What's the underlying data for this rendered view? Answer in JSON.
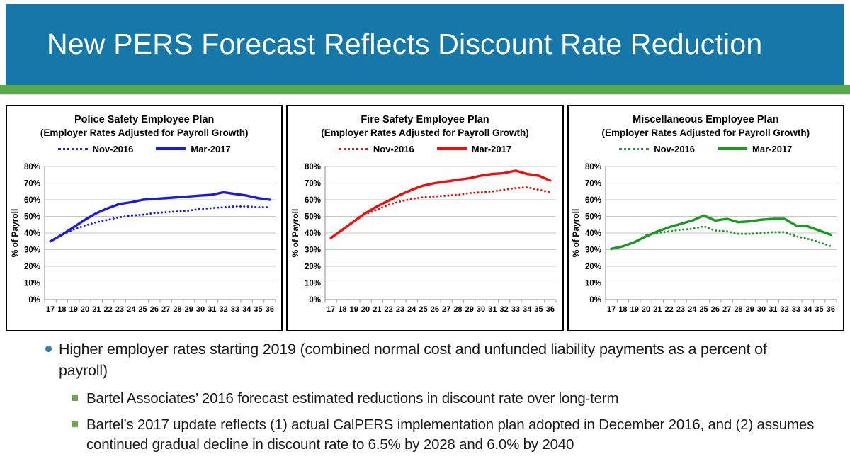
{
  "slide": {
    "title": "New PERS Forecast Reflects Discount Rate Reduction",
    "header_color": "#1578A8",
    "accent_color": "#57A94A"
  },
  "charts": [
    {
      "title": "Police Safety Employee Plan",
      "subtitle": "(Employer Rates Adjusted for Payroll Growth)",
      "chart_data": {
        "type": "line",
        "x": [
          17,
          18,
          19,
          20,
          21,
          22,
          23,
          24,
          25,
          26,
          27,
          28,
          29,
          30,
          31,
          32,
          33,
          34,
          35,
          36
        ],
        "ylabel": "% of Payroll",
        "ylim": [
          0,
          80
        ],
        "ytick_step": 10,
        "ytick_format": "percent",
        "grid": true,
        "legend_position": "top",
        "series": [
          {
            "name": "Nov-2016",
            "style": "dotted",
            "color": "#1A1AE6",
            "values": [
              35,
              39,
              42,
              44.5,
              46.5,
              48,
              49.5,
              50.5,
              51,
              52,
              52.5,
              53,
              53.5,
              54.5,
              55,
              55.5,
              56,
              56,
              55.5,
              55.5
            ]
          },
          {
            "name": "Mar-2017",
            "style": "solid",
            "color": "#1A1AE6",
            "values": [
              35,
              39,
              43.5,
              48,
              52,
              55,
              57.5,
              58.5,
              60,
              60.5,
              61,
              61.5,
              62,
              62.5,
              63,
              64.5,
              63.5,
              62.5,
              61,
              60
            ]
          }
        ]
      }
    },
    {
      "title": "Fire Safety Employee Plan",
      "subtitle": "(Employer Rates Adjusted for Payroll Growth)",
      "chart_data": {
        "type": "line",
        "x": [
          17,
          18,
          19,
          20,
          21,
          22,
          23,
          24,
          25,
          26,
          27,
          28,
          29,
          30,
          31,
          32,
          33,
          34,
          35,
          36
        ],
        "ylabel": "% of Payroll",
        "ylim": [
          0,
          80
        ],
        "ytick_step": 10,
        "ytick_format": "percent",
        "grid": true,
        "legend_position": "top",
        "series": [
          {
            "name": "Nov-2016",
            "style": "dotted",
            "color": "#F20D0D",
            "values": [
              37,
              42,
              47,
              51.5,
              54,
              57,
              59,
              60.5,
              61.5,
              62,
              62.5,
              63,
              64,
              64.5,
              65,
              66,
              67,
              67.5,
              66,
              64.5
            ]
          },
          {
            "name": "Mar-2017",
            "style": "solid",
            "color": "#F20D0D",
            "values": [
              37,
              42,
              47,
              52,
              56,
              59.5,
              63,
              66,
              68.5,
              70,
              71,
              72,
              73,
              74.5,
              75.5,
              76,
              77.5,
              75.5,
              74.5,
              71.5
            ]
          }
        ]
      }
    },
    {
      "title": "Miscellaneous Employee Plan",
      "subtitle": "(Employer Rates Adjusted for Payroll Growth)",
      "chart_data": {
        "type": "line",
        "x": [
          17,
          18,
          19,
          20,
          21,
          22,
          23,
          24,
          25,
          26,
          27,
          28,
          29,
          30,
          31,
          32,
          33,
          34,
          35,
          36
        ],
        "ylabel": "% of Payroll",
        "ylim": [
          0,
          80
        ],
        "ytick_step": 10,
        "ytick_format": "percent",
        "grid": true,
        "legend_position": "top",
        "series": [
          {
            "name": "Nov-2016",
            "style": "dotted",
            "color": "#189A22",
            "values": [
              30.5,
              32,
              34.5,
              38.5,
              40,
              41,
              42,
              42.5,
              44,
              41.5,
              41,
              39.5,
              39.5,
              40,
              40.5,
              40.5,
              38,
              36.5,
              34.5,
              32
            ]
          },
          {
            "name": "Mar-2017",
            "style": "solid",
            "color": "#189A22",
            "values": [
              30.5,
              32,
              34.5,
              38,
              41,
              43.5,
              45.5,
              47.5,
              50.5,
              47.5,
              48.5,
              46.5,
              47,
              48,
              48.5,
              48.5,
              44.5,
              44,
              41.5,
              39
            ]
          }
        ]
      }
    }
  ],
  "bullets": {
    "main": "Higher employer rates starting 2019 (combined normal cost and unfunded liability payments as a percent of payroll)",
    "sub": [
      "Bartel Associates’ 2016 forecast estimated reductions in discount rate over long-term",
      "Bartel’s 2017 update reflects (1) actual CalPERS implementation plan adopted in December 2016, and (2) assumes continued gradual decline in discount rate to 6.5% by 2028 and 6.0% by 2040"
    ]
  }
}
